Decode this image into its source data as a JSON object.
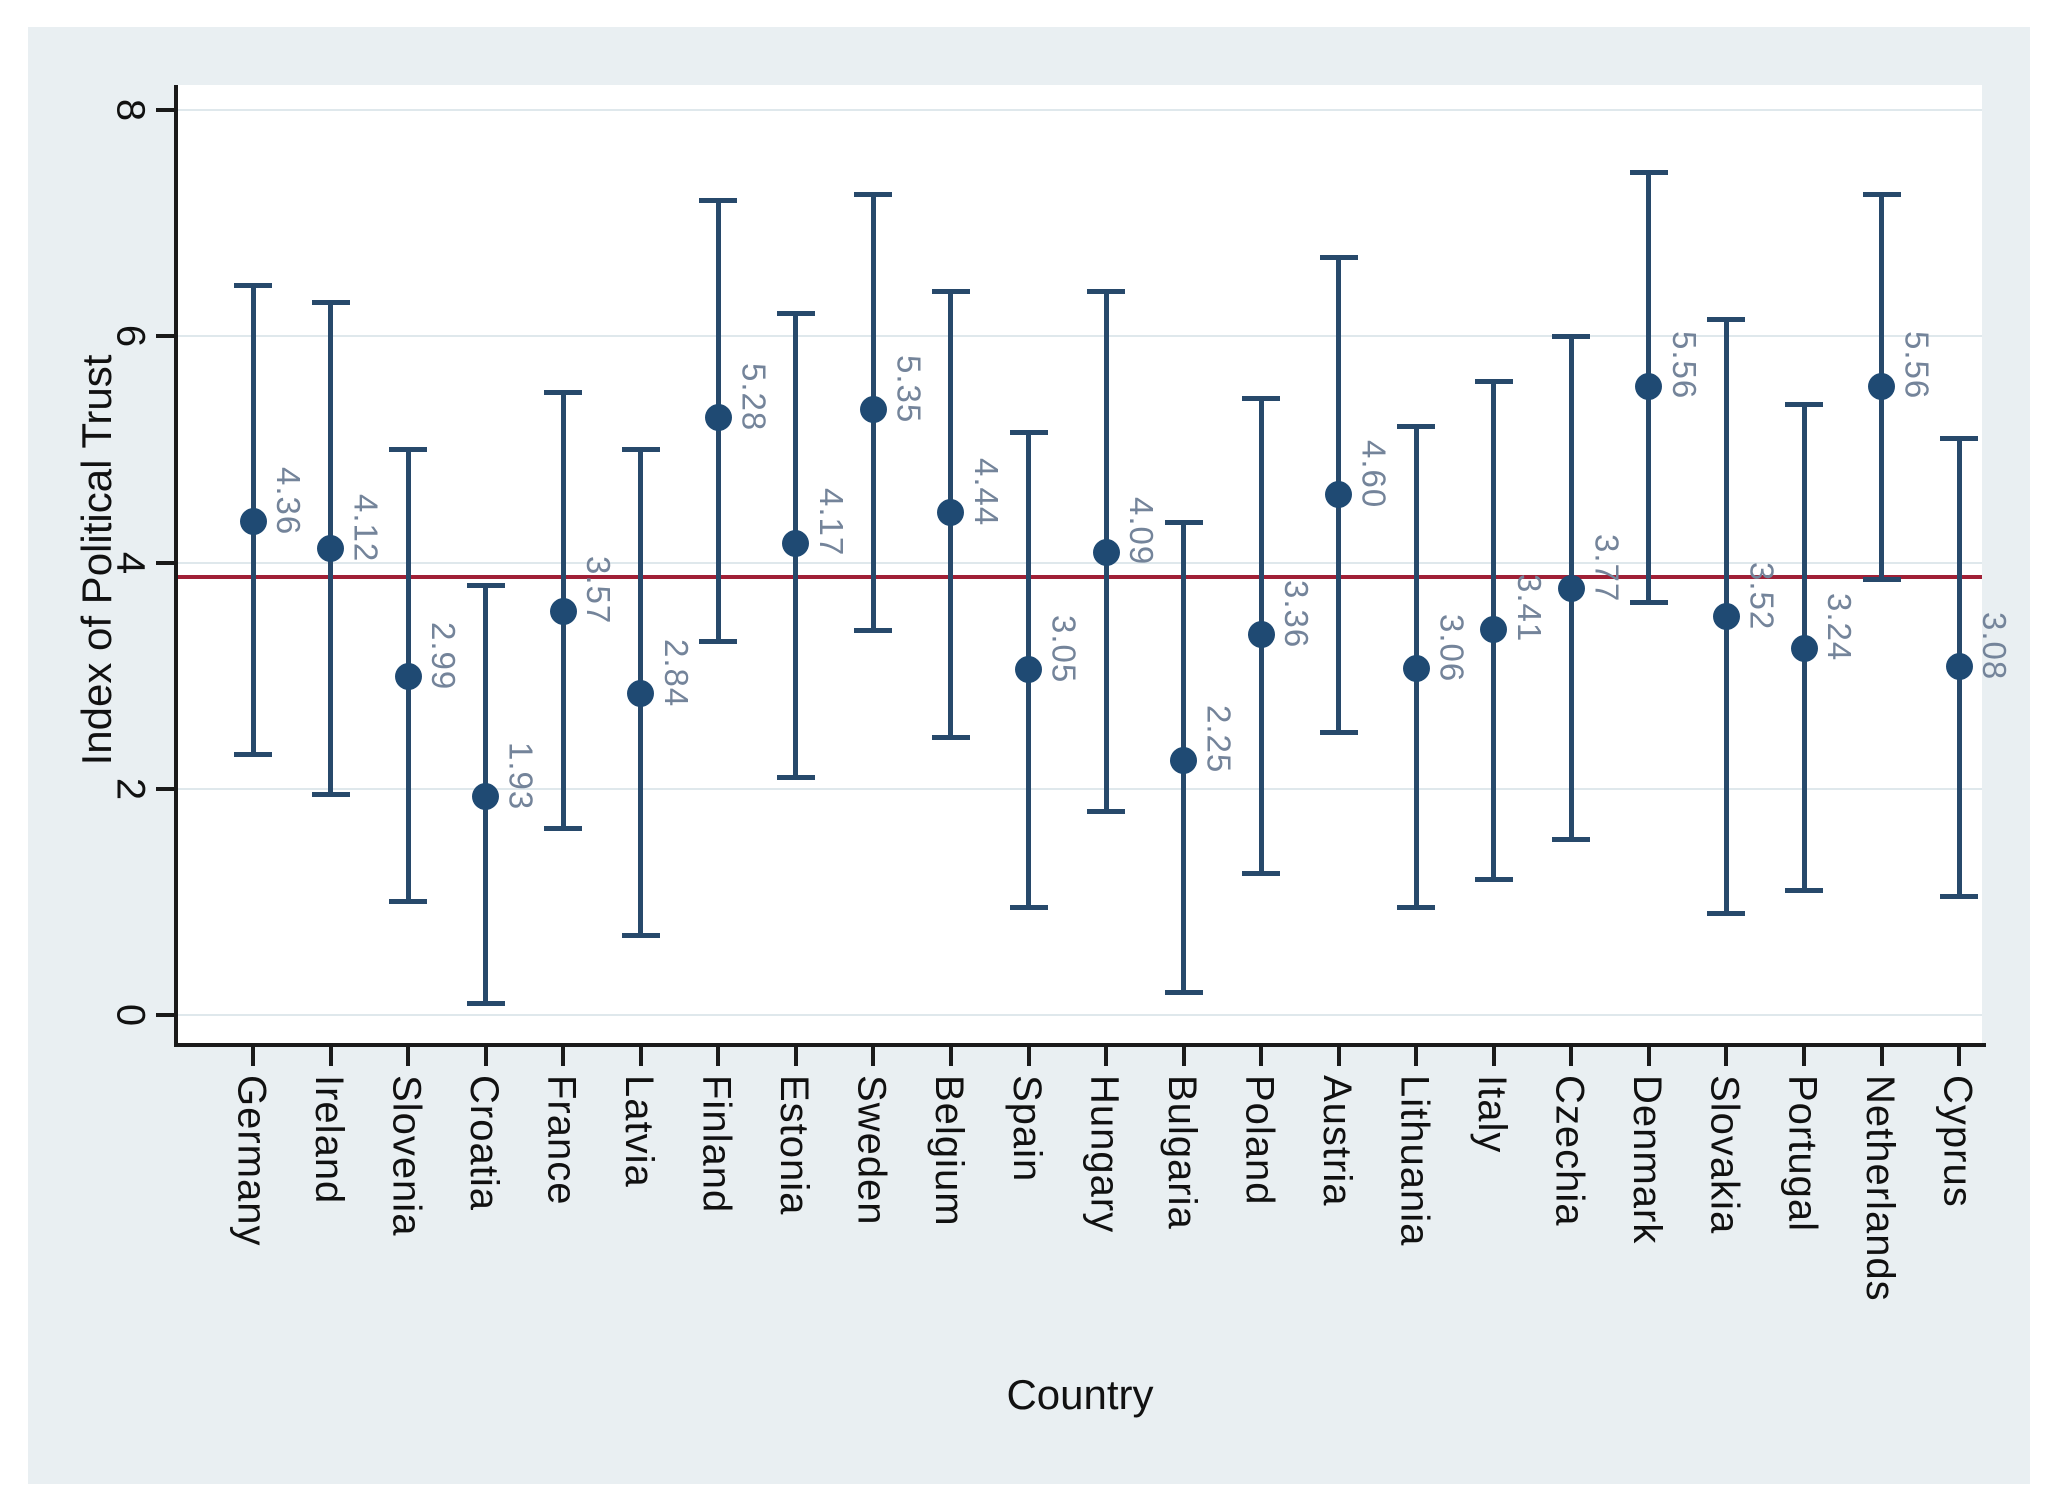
{
  "chart_data": {
    "type": "scatter",
    "title": "",
    "xlabel": "Country",
    "ylabel": "Index of Political Trust",
    "ylim": [
      -0.3,
      8.3
    ],
    "yticks": [
      0,
      2,
      4,
      6,
      8
    ],
    "grid": "horizontal",
    "legend": "none",
    "reference_line_value": 3.87,
    "marker_style": "filled-circle-with-capped-error-bars",
    "label_angle": "vertical",
    "categories": [
      "Germany",
      "Ireland",
      "Slovenia",
      "Croatia",
      "France",
      "Latvia",
      "Finland",
      "Estonia",
      "Sweden",
      "Belgium",
      "Spain",
      "Hungary",
      "Bulgaria",
      "Poland",
      "Austria",
      "Lithuania",
      "Italy",
      "Czechia",
      "Denmark",
      "Slovakia",
      "Portugal",
      "Netherlands",
      "Cyprus"
    ],
    "series": [
      {
        "name": "Index of Political Trust",
        "values": [
          4.36,
          4.12,
          2.99,
          1.93,
          3.57,
          2.84,
          5.28,
          4.17,
          5.35,
          4.44,
          3.05,
          4.09,
          2.25,
          3.36,
          4.6,
          3.06,
          3.41,
          3.77,
          5.56,
          3.52,
          3.24,
          5.56,
          3.08
        ],
        "point_labels": [
          "4.36",
          "4.12",
          "2.99",
          "1.93",
          "3.57",
          "2.84",
          "5.28",
          "4.17",
          "5.35",
          "4.44",
          "3.05",
          "4.09",
          "2.25",
          "3.36",
          "4.60",
          "3.06",
          "3.41",
          "3.77",
          "5.56",
          "3.52",
          "3.24",
          "5.56",
          "3.08"
        ],
        "ci_low": [
          2.3,
          1.95,
          1.0,
          0.1,
          1.65,
          0.7,
          3.3,
          2.1,
          3.4,
          2.45,
          0.95,
          1.8,
          0.2,
          1.25,
          2.5,
          0.95,
          1.2,
          1.55,
          3.65,
          0.9,
          1.1,
          3.85,
          1.05
        ],
        "ci_high": [
          6.45,
          6.3,
          5.0,
          3.8,
          5.5,
          5.0,
          7.2,
          6.2,
          7.25,
          6.4,
          5.15,
          6.4,
          4.35,
          5.45,
          6.7,
          5.2,
          5.6,
          6.0,
          7.45,
          6.15,
          5.4,
          7.25,
          5.1
        ]
      }
    ]
  },
  "colors": {
    "page_background": "#ffffff",
    "figure_background": "#e9eff2",
    "plot_background": "#ffffff",
    "gridline": "#dfe8ec",
    "axis": "#1a1a1a",
    "marker": "#1f4a73",
    "error_bar": "#27496b",
    "reference_line": "#a02036",
    "point_label_text": "#74849a",
    "axis_text": "#111111"
  }
}
